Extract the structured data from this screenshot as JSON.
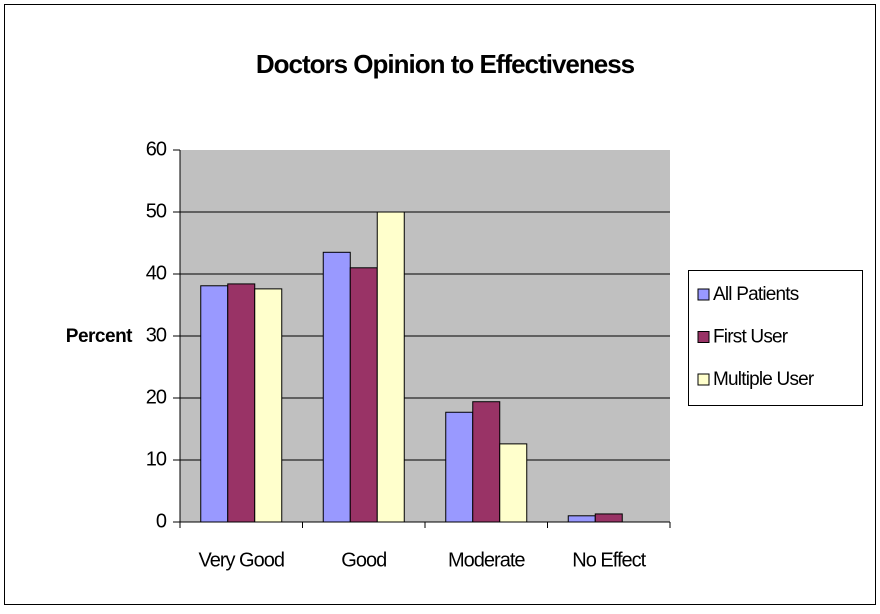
{
  "chart_data": {
    "type": "bar",
    "title": "Doctors Opinion to Effectiveness",
    "y_label": "Percent",
    "categories": [
      "Very Good",
      "Good",
      "Moderate",
      "No Effect"
    ],
    "series": [
      {
        "name": "All Patients",
        "color": "#9999ff",
        "values": [
          38.1,
          43.5,
          17.7,
          1.0
        ]
      },
      {
        "name": "First User",
        "color": "#993366",
        "values": [
          38.4,
          41.0,
          19.4,
          1.3
        ]
      },
      {
        "name": "Multiple User",
        "color": "#ffffcc",
        "values": [
          37.6,
          50.0,
          12.6,
          0
        ]
      }
    ],
    "ylim": [
      0,
      60
    ],
    "yticks": [
      0,
      10,
      20,
      30,
      40,
      50,
      60
    ],
    "grid": true,
    "legend": "right"
  }
}
